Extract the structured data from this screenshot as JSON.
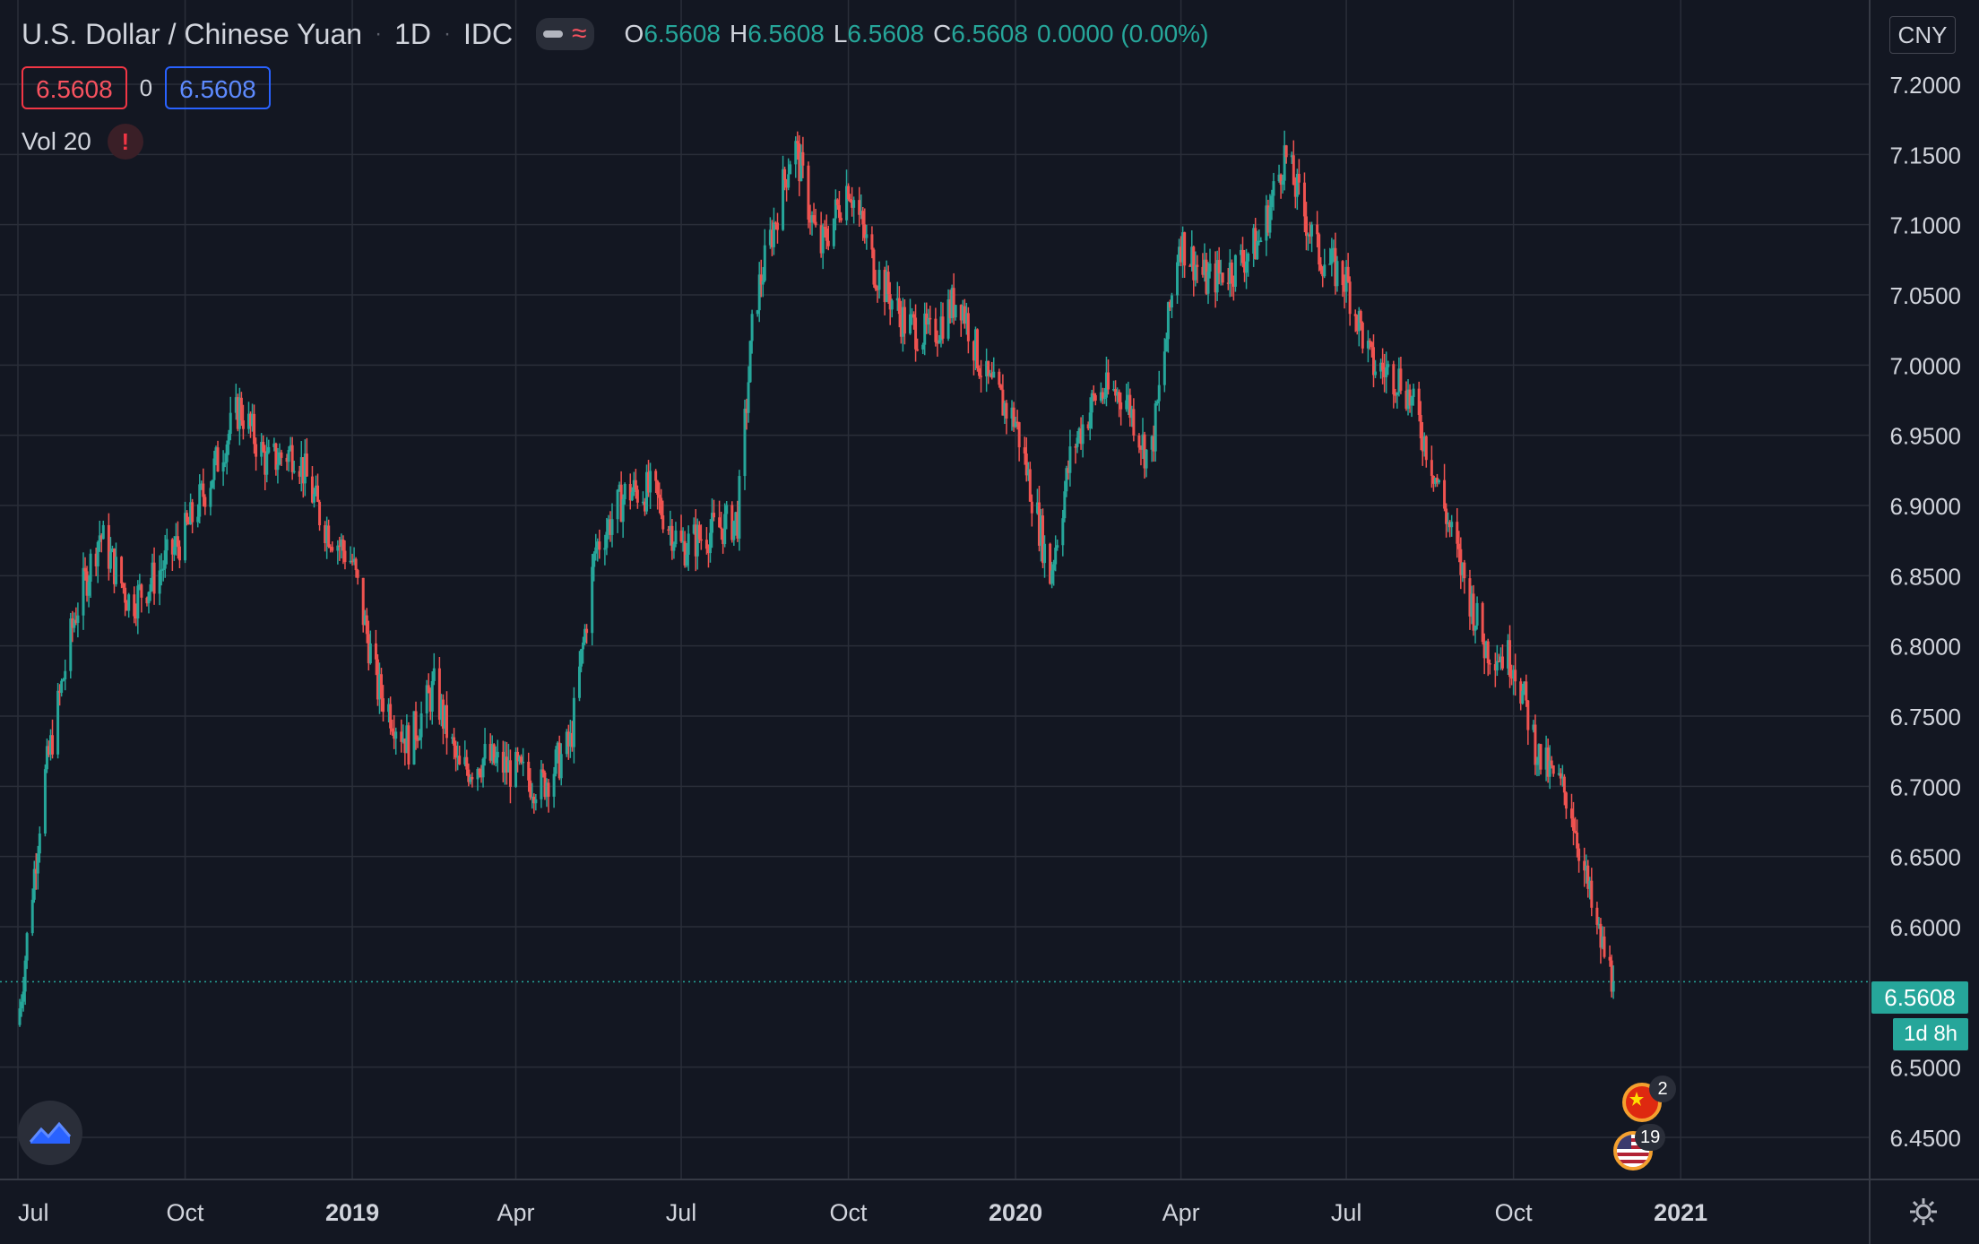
{
  "header": {
    "symbol_title": "U.S. Dollar / Chinese Yuan",
    "interval": "1D",
    "exchange": "IDC",
    "ohlc": {
      "open_label": "O",
      "open": "6.5608",
      "high_label": "H",
      "high": "6.5608",
      "low_label": "L",
      "low": "6.5608",
      "close_label": "C",
      "close": "6.5608",
      "change": "0.0000 (0.00%)"
    }
  },
  "trade_panel": {
    "bid": "6.5608",
    "spread": "0",
    "ask": "6.5608"
  },
  "indicator": {
    "label": "Vol 20",
    "warning_glyph": "!"
  },
  "currency_button": "CNY",
  "last_price_tag": "6.5608",
  "countdown_tag": "1d 8h",
  "events": {
    "china_count": "2",
    "us_count": "19"
  },
  "colors": {
    "background": "#131722",
    "grid": "#2a2e39",
    "up": "#26a69a",
    "down": "#ef5350",
    "bid_border": "#f23645",
    "ask_border": "#2962ff"
  },
  "icons": [
    "tradingview-logo-icon",
    "settings-gear-icon",
    "china-flag-icon",
    "us-flag-icon",
    "warning-icon",
    "eye-icon",
    "wave-icon"
  ],
  "chart_data": {
    "type": "candlestick",
    "title": "U.S. Dollar / Chinese Yuan",
    "ylim": [
      6.42,
      7.26
    ],
    "yticks": [
      "7.2000",
      "7.1500",
      "7.1000",
      "7.0500",
      "7.0000",
      "6.9500",
      "6.9000",
      "6.8500",
      "6.8000",
      "6.7500",
      "6.7000",
      "6.6500",
      "6.6000",
      "6.5000",
      "6.4500"
    ],
    "xticks": [
      "Jul",
      "Oct",
      "2019",
      "Apr",
      "Jul",
      "Oct",
      "2020",
      "Apr",
      "Jul",
      "Oct",
      "2021"
    ],
    "xtick_dates": [
      "2018-07-01",
      "2018-10-01",
      "2019-01-01",
      "2019-04-01",
      "2019-07-01",
      "2019-10-01",
      "2020-01-01",
      "2020-04-01",
      "2020-07-01",
      "2020-10-01",
      "2021-01-01"
    ],
    "xlim": [
      "2018-07-01",
      "2021-04-15"
    ],
    "grid": true,
    "last_price": 6.5608,
    "trend_points": [
      [
        "2018-07-01",
        6.53
      ],
      [
        "2018-07-15",
        6.7
      ],
      [
        "2018-08-01",
        6.82
      ],
      [
        "2018-08-15",
        6.88
      ],
      [
        "2018-09-01",
        6.83
      ],
      [
        "2018-09-15",
        6.85
      ],
      [
        "2018-10-01",
        6.88
      ],
      [
        "2018-10-15",
        6.92
      ],
      [
        "2018-10-31",
        6.97
      ],
      [
        "2018-11-15",
        6.93
      ],
      [
        "2018-12-01",
        6.94
      ],
      [
        "2018-12-15",
        6.89
      ],
      [
        "2019-01-01",
        6.86
      ],
      [
        "2019-01-15",
        6.77
      ],
      [
        "2019-02-01",
        6.73
      ],
      [
        "2019-02-15",
        6.77
      ],
      [
        "2019-03-01",
        6.71
      ],
      [
        "2019-03-15",
        6.72
      ],
      [
        "2019-04-01",
        6.71
      ],
      [
        "2019-04-15",
        6.7
      ],
      [
        "2019-05-01",
        6.73
      ],
      [
        "2019-05-15",
        6.87
      ],
      [
        "2019-06-01",
        6.91
      ],
      [
        "2019-06-15",
        6.91
      ],
      [
        "2019-07-01",
        6.87
      ],
      [
        "2019-07-15",
        6.88
      ],
      [
        "2019-08-01",
        6.89
      ],
      [
        "2019-08-10",
        7.04
      ],
      [
        "2019-09-01",
        7.16
      ],
      [
        "2019-09-15",
        7.08
      ],
      [
        "2019-10-01",
        7.13
      ],
      [
        "2019-10-15",
        7.07
      ],
      [
        "2019-11-01",
        7.03
      ],
      [
        "2019-11-15",
        7.02
      ],
      [
        "2019-12-01",
        7.05
      ],
      [
        "2019-12-15",
        6.99
      ],
      [
        "2020-01-01",
        6.96
      ],
      [
        "2020-01-15",
        6.88
      ],
      [
        "2020-01-20",
        6.85
      ],
      [
        "2020-02-01",
        6.94
      ],
      [
        "2020-02-15",
        6.98
      ],
      [
        "2020-03-01",
        6.98
      ],
      [
        "2020-03-15",
        6.93
      ],
      [
        "2020-03-31",
        7.09
      ],
      [
        "2020-04-15",
        7.06
      ],
      [
        "2020-05-01",
        7.07
      ],
      [
        "2020-05-15",
        7.09
      ],
      [
        "2020-05-28",
        7.15
      ],
      [
        "2020-06-15",
        7.08
      ],
      [
        "2020-07-01",
        7.06
      ],
      [
        "2020-07-15",
        7.0
      ],
      [
        "2020-08-01",
        6.99
      ],
      [
        "2020-08-15",
        6.94
      ],
      [
        "2020-09-01",
        6.86
      ],
      [
        "2020-09-15",
        6.8
      ],
      [
        "2020-10-01",
        6.79
      ],
      [
        "2020-10-15",
        6.72
      ],
      [
        "2020-11-01",
        6.69
      ],
      [
        "2020-11-15",
        6.6
      ],
      [
        "2020-11-25",
        6.5608
      ]
    ]
  }
}
